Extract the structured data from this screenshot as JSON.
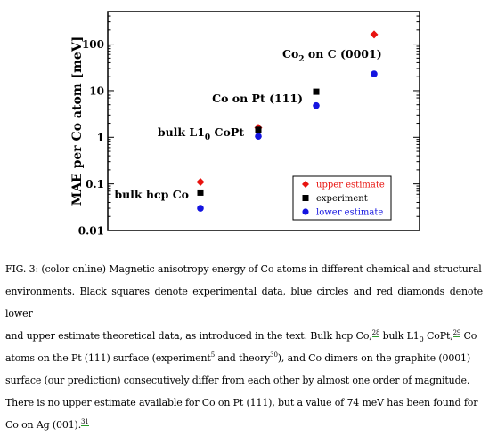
{
  "chart_data": {
    "type": "scatter",
    "ylabel": "MAE per Co atom [meV]",
    "yscale": "log",
    "ylim": [
      0.01,
      500
    ],
    "yticks": [
      "0.01",
      "0.1",
      "1",
      "10",
      "100"
    ],
    "grid": false,
    "legend_position": "bottom-right",
    "categories": [
      {
        "label": "bulk hcp Co",
        "sub": ""
      },
      {
        "label": "bulk L1",
        "sub": "0",
        "suffix": " CoPt"
      },
      {
        "label": "Co on Pt (111)",
        "sub": ""
      },
      {
        "label": "Co",
        "sub": "2",
        "suffix": " on C (0001)"
      }
    ],
    "series": [
      {
        "name": "upper estimate",
        "marker": "diamond",
        "color": "#e8130f",
        "values": [
          0.11,
          1.6,
          null,
          160
        ]
      },
      {
        "name": "experiment",
        "marker": "square",
        "color": "#000000",
        "values": [
          0.065,
          1.45,
          9.5,
          null
        ]
      },
      {
        "name": "lower estimate",
        "marker": "circle",
        "color": "#1414e0",
        "values": [
          0.03,
          1.05,
          4.8,
          23
        ]
      }
    ]
  },
  "caption": {
    "lines": [
      "FIG. 3: (color online) Magnetic anisotropy energy of Co atoms in different chemical and structural",
      "environments. Black squares denote experimental data, blue circles and red diamonds denote lower",
      "and upper estimate theoretical data, as introduced in the text. Bulk hcp Co,",
      "28",
      " bulk L1",
      "0",
      " CoPt,",
      "29",
      " Co",
      "atoms on the Pt (111) surface (experiment",
      "5",
      " and theory",
      "30",
      "), and Co dimers on the graphite (0001)",
      "surface (our prediction) consecutively differ from each other by almost one order of magnitude.",
      "There is no upper estimate available for Co on Pt (111), but a value of 74 meV has been found for",
      "Co on Ag (001).",
      "31"
    ]
  }
}
